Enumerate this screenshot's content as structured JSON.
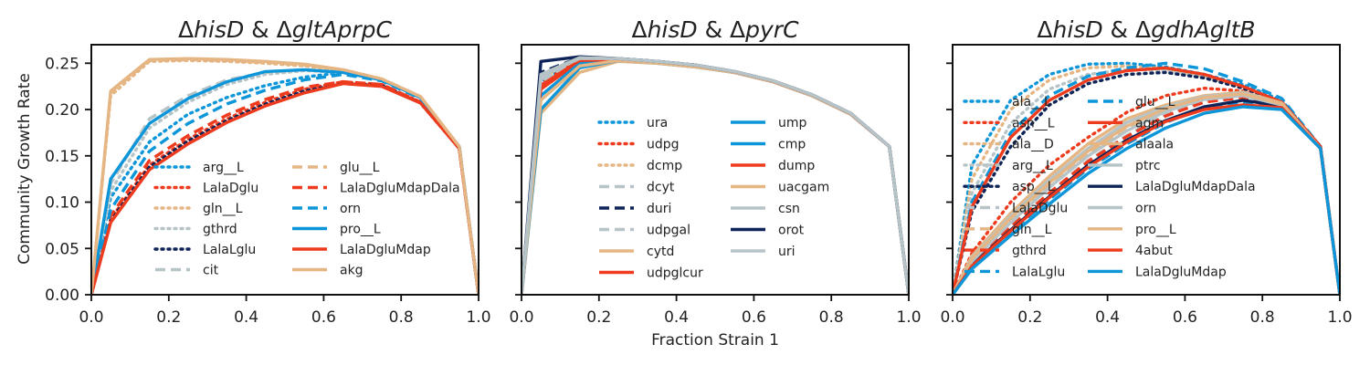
{
  "figure": {
    "shared_xlabel": "Fraction Strain 1",
    "shared_ylabel": "Community Growth Rate",
    "xticks": [
      "0.0",
      "0.2",
      "0.4",
      "0.6",
      "0.8",
      "1.0"
    ],
    "yticks": [
      "0.00",
      "0.05",
      "0.10",
      "0.15",
      "0.20",
      "0.25"
    ],
    "colors": {
      "blue": "#0c96d9",
      "red": "#ee3a1d",
      "tan": "#e5b683",
      "gray": "#b7c4c7",
      "navy": "#0e2458"
    }
  },
  "chart_data": [
    {
      "type": "line",
      "title_parts": [
        {
          "t": "Δ",
          "i": false
        },
        {
          "t": "hisD",
          "i": true
        },
        {
          "t": " & Δ",
          "i": false
        },
        {
          "t": "gltAprpC",
          "i": true
        }
      ],
      "xlim": [
        0,
        1
      ],
      "ylim": [
        0,
        0.27
      ],
      "x": [
        0,
        0.05,
        0.15,
        0.25,
        0.35,
        0.45,
        0.55,
        0.65,
        0.75,
        0.85,
        0.95,
        1.0
      ],
      "legend_ncol": 2,
      "series": [
        {
          "name": "arg__L",
          "color": "#0c96d9",
          "dash": "dot",
          "values": [
            0,
            0.105,
            0.165,
            0.195,
            0.213,
            0.226,
            0.235,
            0.24,
            0.232,
            0.213,
            0.16,
            0
          ]
        },
        {
          "name": "LalaDglu",
          "color": "#ee3a1d",
          "dash": "dot",
          "values": [
            0,
            0.082,
            0.14,
            0.168,
            0.19,
            0.208,
            0.222,
            0.23,
            0.227,
            0.208,
            0.158,
            0
          ]
        },
        {
          "name": "gln__L",
          "color": "#e5b683",
          "dash": "dot",
          "values": [
            0,
            0.215,
            0.252,
            0.253,
            0.252,
            0.25,
            0.247,
            0.242,
            0.232,
            0.214,
            0.16,
            0
          ]
        },
        {
          "name": "gthrd",
          "color": "#b7c4c7",
          "dash": "dot",
          "values": [
            0,
            0.112,
            0.18,
            0.208,
            0.227,
            0.238,
            0.242,
            0.24,
            0.232,
            0.213,
            0.16,
            0
          ]
        },
        {
          "name": "LalaLglu",
          "color": "#0e2458",
          "dash": "dot",
          "values": [
            0,
            0.08,
            0.138,
            0.166,
            0.188,
            0.206,
            0.22,
            0.228,
            0.226,
            0.207,
            0.158,
            0
          ]
        },
        {
          "name": "cit",
          "color": "#b7c4c7",
          "dash": "dash",
          "values": [
            0,
            0.12,
            0.19,
            0.215,
            0.232,
            0.24,
            0.243,
            0.24,
            0.232,
            0.213,
            0.16,
            0
          ]
        },
        {
          "name": "glu__L",
          "color": "#e5b683",
          "dash": "dash",
          "values": [
            0,
            0.219,
            0.253,
            0.254,
            0.253,
            0.251,
            0.248,
            0.243,
            0.233,
            0.214,
            0.16,
            0
          ]
        },
        {
          "name": "LalaDgluMdapDala",
          "color": "#ee3a1d",
          "dash": "dash",
          "values": [
            0,
            0.085,
            0.145,
            0.172,
            0.194,
            0.211,
            0.224,
            0.23,
            0.227,
            0.208,
            0.158,
            0
          ]
        },
        {
          "name": "orn",
          "color": "#0c96d9",
          "dash": "dash",
          "values": [
            0,
            0.092,
            0.155,
            0.185,
            0.206,
            0.221,
            0.232,
            0.238,
            0.231,
            0.212,
            0.16,
            0
          ]
        },
        {
          "name": "pro__L",
          "color": "#0c96d9",
          "dash": "solid",
          "values": [
            0,
            0.125,
            0.185,
            0.212,
            0.23,
            0.241,
            0.243,
            0.24,
            0.232,
            0.213,
            0.16,
            0
          ]
        },
        {
          "name": "LalaDgluMdap",
          "color": "#ee3a1d",
          "dash": "solid",
          "values": [
            0,
            0.078,
            0.135,
            0.163,
            0.186,
            0.204,
            0.218,
            0.228,
            0.225,
            0.207,
            0.158,
            0
          ]
        },
        {
          "name": "akg",
          "color": "#e5b683",
          "dash": "solid",
          "values": [
            0,
            0.22,
            0.254,
            0.255,
            0.254,
            0.252,
            0.249,
            0.243,
            0.233,
            0.214,
            0.16,
            0
          ]
        }
      ]
    },
    {
      "type": "line",
      "title_parts": [
        {
          "t": "Δ",
          "i": false
        },
        {
          "t": "hisD",
          "i": true
        },
        {
          "t": " & Δ",
          "i": false
        },
        {
          "t": "pyrC",
          "i": true
        }
      ],
      "xlim": [
        0,
        1
      ],
      "ylim": [
        0,
        0.27
      ],
      "x": [
        0,
        0.05,
        0.15,
        0.25,
        0.35,
        0.45,
        0.55,
        0.65,
        0.75,
        0.85,
        0.95,
        1.0
      ],
      "legend_ncol": 2,
      "series": [
        {
          "name": "ura",
          "color": "#0c96d9",
          "dash": "dot",
          "values": [
            0,
            0.23,
            0.254,
            0.255,
            0.252,
            0.248,
            0.241,
            0.23,
            0.215,
            0.195,
            0.16,
            0
          ]
        },
        {
          "name": "udpg",
          "color": "#ee3a1d",
          "dash": "dot",
          "values": [
            0,
            0.228,
            0.255,
            0.254,
            0.251,
            0.247,
            0.24,
            0.23,
            0.215,
            0.195,
            0.16,
            0
          ]
        },
        {
          "name": "dcmp",
          "color": "#e5b683",
          "dash": "dot",
          "values": [
            0,
            0.235,
            0.254,
            0.254,
            0.251,
            0.247,
            0.24,
            0.23,
            0.215,
            0.195,
            0.16,
            0
          ]
        },
        {
          "name": "dcyt",
          "color": "#b7c4c7",
          "dash": "dash",
          "values": [
            0,
            0.232,
            0.255,
            0.255,
            0.252,
            0.248,
            0.241,
            0.231,
            0.216,
            0.196,
            0.16,
            0
          ]
        },
        {
          "name": "duri",
          "color": "#0e2458",
          "dash": "dash",
          "values": [
            0,
            0.24,
            0.256,
            0.255,
            0.252,
            0.248,
            0.241,
            0.231,
            0.216,
            0.196,
            0.16,
            0
          ]
        },
        {
          "name": "udpgal",
          "color": "#b7c4c7",
          "dash": "dash",
          "values": [
            0,
            0.229,
            0.255,
            0.254,
            0.251,
            0.247,
            0.24,
            0.23,
            0.215,
            0.195,
            0.16,
            0
          ]
        },
        {
          "name": "cytd",
          "color": "#e5b683",
          "dash": "solid",
          "values": [
            0,
            0.196,
            0.24,
            0.252,
            0.25,
            0.246,
            0.24,
            0.23,
            0.215,
            0.195,
            0.16,
            0
          ]
        },
        {
          "name": "udpglcur",
          "color": "#ee3a1d",
          "dash": "solid",
          "values": [
            0,
            0.222,
            0.252,
            0.254,
            0.251,
            0.247,
            0.24,
            0.23,
            0.215,
            0.195,
            0.16,
            0
          ]
        },
        {
          "name": "ump",
          "color": "#0c96d9",
          "dash": "solid",
          "values": [
            0,
            0.2,
            0.245,
            0.253,
            0.25,
            0.246,
            0.24,
            0.23,
            0.215,
            0.195,
            0.16,
            0
          ]
        },
        {
          "name": "cmp",
          "color": "#0c96d9",
          "dash": "solid",
          "values": [
            0,
            0.215,
            0.25,
            0.254,
            0.251,
            0.247,
            0.24,
            0.23,
            0.215,
            0.195,
            0.16,
            0
          ]
        },
        {
          "name": "dump",
          "color": "#ee3a1d",
          "dash": "solid",
          "values": [
            0,
            0.226,
            0.253,
            0.254,
            0.251,
            0.247,
            0.24,
            0.23,
            0.215,
            0.195,
            0.16,
            0
          ]
        },
        {
          "name": "uacgam",
          "color": "#e5b683",
          "dash": "solid",
          "values": [
            0,
            0.21,
            0.247,
            0.253,
            0.25,
            0.246,
            0.24,
            0.23,
            0.215,
            0.195,
            0.16,
            0
          ]
        },
        {
          "name": "csn",
          "color": "#b7c4c7",
          "dash": "solid",
          "values": [
            0,
            0.236,
            0.255,
            0.255,
            0.252,
            0.248,
            0.241,
            0.231,
            0.216,
            0.196,
            0.16,
            0
          ]
        },
        {
          "name": "orot",
          "color": "#0e2458",
          "dash": "solid",
          "values": [
            0,
            0.252,
            0.257,
            0.255,
            0.252,
            0.248,
            0.241,
            0.231,
            0.216,
            0.196,
            0.16,
            0
          ]
        },
        {
          "name": "uri",
          "color": "#b7c4c7",
          "dash": "solid",
          "values": [
            0,
            0.238,
            0.256,
            0.255,
            0.252,
            0.248,
            0.241,
            0.231,
            0.216,
            0.196,
            0.16,
            0
          ]
        }
      ]
    },
    {
      "type": "line",
      "title_parts": [
        {
          "t": "Δ",
          "i": false
        },
        {
          "t": "hisD",
          "i": true
        },
        {
          "t": " & Δ",
          "i": false
        },
        {
          "t": "gdhAgltB",
          "i": true
        }
      ],
      "xlim": [
        0,
        1
      ],
      "ylim": [
        0,
        0.27
      ],
      "x": [
        0,
        0.05,
        0.15,
        0.25,
        0.35,
        0.45,
        0.55,
        0.65,
        0.75,
        0.85,
        0.95,
        1.0
      ],
      "legend_ncol": 2,
      "series": [
        {
          "name": "ala__L",
          "color": "#0c96d9",
          "dash": "dot",
          "values": [
            0,
            0.14,
            0.21,
            0.238,
            0.249,
            0.25,
            0.246,
            0.238,
            0.227,
            0.21,
            0.16,
            0
          ]
        },
        {
          "name": "asn__L",
          "color": "#ee3a1d",
          "dash": "dot",
          "values": [
            0,
            0.045,
            0.1,
            0.14,
            0.17,
            0.197,
            0.215,
            0.223,
            0.22,
            0.205,
            0.158,
            0
          ]
        },
        {
          "name": "ala__D",
          "color": "#e5b683",
          "dash": "dot",
          "values": [
            0,
            0.125,
            0.2,
            0.232,
            0.245,
            0.247,
            0.244,
            0.236,
            0.225,
            0.208,
            0.16,
            0
          ]
        },
        {
          "name": "arg__L",
          "color": "#b7c4c7",
          "dash": "dot",
          "values": [
            0,
            0.11,
            0.185,
            0.222,
            0.238,
            0.243,
            0.242,
            0.235,
            0.224,
            0.208,
            0.16,
            0
          ]
        },
        {
          "name": "asp__L",
          "color": "#0e2458",
          "dash": "dot",
          "values": [
            0,
            0.09,
            0.16,
            0.205,
            0.228,
            0.238,
            0.24,
            0.234,
            0.223,
            0.207,
            0.16,
            0
          ]
        },
        {
          "name": "LalaDglu",
          "color": "#b7c4c7",
          "dash": "dash",
          "values": [
            0,
            0.035,
            0.075,
            0.11,
            0.145,
            0.172,
            0.195,
            0.21,
            0.215,
            0.205,
            0.158,
            0
          ]
        },
        {
          "name": "gln__L",
          "color": "#e5b683",
          "dash": "dash",
          "values": [
            0,
            0.038,
            0.08,
            0.118,
            0.152,
            0.178,
            0.2,
            0.212,
            0.217,
            0.206,
            0.158,
            0
          ]
        },
        {
          "name": "gthrd",
          "color": "#ee3a1d",
          "dash": "dash",
          "values": [
            0,
            0.033,
            0.073,
            0.11,
            0.144,
            0.171,
            0.193,
            0.208,
            0.213,
            0.204,
            0.158,
            0
          ]
        },
        {
          "name": "LalaLglu",
          "color": "#0c96d9",
          "dash": "dash",
          "values": [
            0,
            0.03,
            0.068,
            0.103,
            0.136,
            0.163,
            0.186,
            0.202,
            0.208,
            0.203,
            0.158,
            0
          ]
        },
        {
          "name": "glu__L",
          "color": "#0c96d9",
          "dash": "dash",
          "values": [
            0,
            0.1,
            0.175,
            0.215,
            0.236,
            0.245,
            0.25,
            0.244,
            0.23,
            0.212,
            0.16,
            0
          ]
        },
        {
          "name": "agm",
          "color": "#ee3a1d",
          "dash": "solid",
          "values": [
            0,
            0.095,
            0.17,
            0.21,
            0.232,
            0.242,
            0.245,
            0.238,
            0.225,
            0.208,
            0.16,
            0
          ]
        },
        {
          "name": "alaala",
          "color": "#e5b683",
          "dash": "solid",
          "values": [
            0,
            0.042,
            0.088,
            0.128,
            0.163,
            0.19,
            0.205,
            0.215,
            0.219,
            0.207,
            0.158,
            0
          ]
        },
        {
          "name": "ptrc",
          "color": "#b7c4c7",
          "dash": "solid",
          "values": [
            0,
            0.04,
            0.085,
            0.124,
            0.158,
            0.186,
            0.203,
            0.214,
            0.218,
            0.206,
            0.158,
            0
          ]
        },
        {
          "name": "LalaDgluMdapDala",
          "color": "#0e2458",
          "dash": "solid",
          "values": [
            0,
            0.032,
            0.07,
            0.106,
            0.14,
            0.167,
            0.188,
            0.203,
            0.21,
            0.204,
            0.158,
            0
          ]
        },
        {
          "name": "orn",
          "color": "#b7c4c7",
          "dash": "solid",
          "values": [
            0,
            0.036,
            0.078,
            0.116,
            0.15,
            0.177,
            0.198,
            0.211,
            0.215,
            0.205,
            0.158,
            0
          ]
        },
        {
          "name": "pro__L",
          "color": "#e5b683",
          "dash": "solid",
          "values": [
            0,
            0.039,
            0.083,
            0.121,
            0.155,
            0.182,
            0.201,
            0.213,
            0.217,
            0.206,
            0.158,
            0
          ]
        },
        {
          "name": "4abut",
          "color": "#ee3a1d",
          "dash": "solid",
          "values": [
            0,
            0.031,
            0.069,
            0.105,
            0.138,
            0.165,
            0.187,
            0.2,
            0.205,
            0.202,
            0.158,
            0
          ]
        },
        {
          "name": "LalaDgluMdap",
          "color": "#0c96d9",
          "dash": "solid",
          "values": [
            0,
            0.028,
            0.064,
            0.098,
            0.131,
            0.158,
            0.18,
            0.196,
            0.203,
            0.2,
            0.158,
            0
          ]
        }
      ]
    }
  ]
}
